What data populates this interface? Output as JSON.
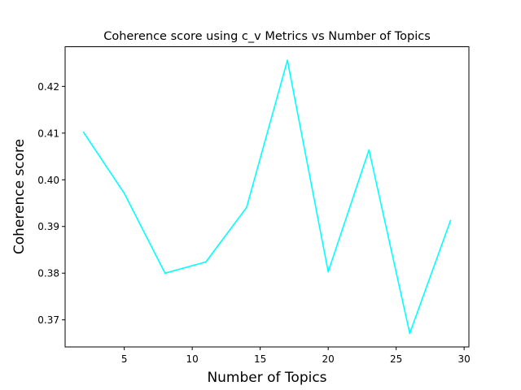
{
  "chart_data": {
    "type": "line",
    "title": "Coherence score using c_v Metrics vs Number of Topics",
    "xlabel": "Number of Topics",
    "ylabel": "Coherence score",
    "x": [
      2,
      5,
      8,
      11,
      14,
      17,
      20,
      23,
      26,
      29
    ],
    "series": [
      {
        "values": [
          0.4102,
          0.3971,
          0.38,
          0.3824,
          0.3941,
          0.4256,
          0.3803,
          0.4064,
          0.3671,
          0.3913
        ],
        "color": "#00ffff"
      }
    ],
    "xlim": [
      0.65,
      30.35
    ],
    "ylim": [
      0.3642,
      0.4285
    ],
    "xticks": [
      5,
      10,
      15,
      20,
      25,
      30
    ],
    "yticks": [
      0.37,
      0.38,
      0.39,
      0.4,
      0.41,
      0.42
    ],
    "xtick_labels": [
      "5",
      "10",
      "15",
      "20",
      "25",
      "30"
    ],
    "ytick_labels": [
      "0.37",
      "0.38",
      "0.39",
      "0.40",
      "0.41",
      "0.42"
    ],
    "grid": false,
    "legend": "none"
  }
}
